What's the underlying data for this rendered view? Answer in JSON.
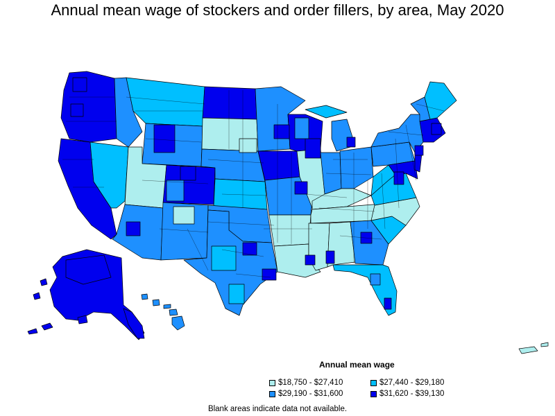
{
  "title": "Annual mean wage of stockers and order fillers, by area, May 2020",
  "legend": {
    "title": "Annual mean wage",
    "items": [
      {
        "label": "$18,750 - $27,410",
        "color": "#aeeeee"
      },
      {
        "label": "$27,440 - $29,180",
        "color": "#00bfff"
      },
      {
        "label": "$29,190 - $31,600",
        "color": "#1e90ff"
      },
      {
        "label": "$31,620 - $39,130",
        "color": "#0000ee"
      }
    ]
  },
  "footnote": "Blank areas indicate data not available.",
  "colors": {
    "tier1": "#aeeeee",
    "tier2": "#00bfff",
    "tier3": "#1e90ff",
    "tier4": "#0000ee",
    "border": "#000000"
  }
}
